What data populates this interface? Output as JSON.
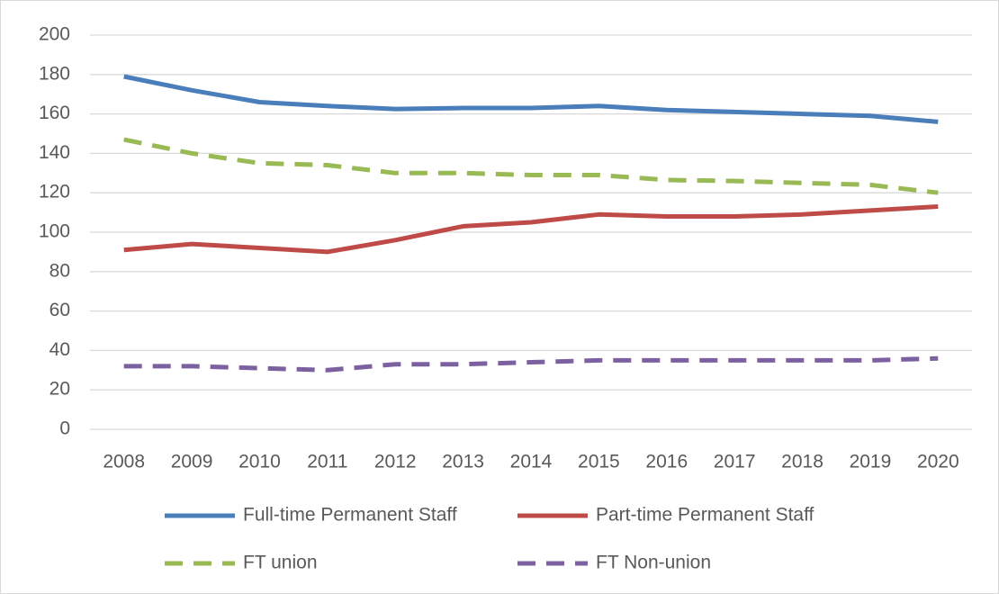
{
  "chart_data": {
    "type": "line",
    "categories": [
      "2008",
      "2009",
      "2010",
      "2011",
      "2012",
      "2013",
      "2014",
      "2015",
      "2016",
      "2017",
      "2018",
      "2019",
      "2020"
    ],
    "series": [
      {
        "name": "Full-time Permanent Staff",
        "color": "#4a7ebb",
        "dash": false,
        "values": [
          179,
          172,
          166,
          164,
          162.5,
          163,
          163,
          164,
          162,
          161,
          160,
          159,
          156
        ]
      },
      {
        "name": "Part-time Permanent Staff",
        "color": "#be4b48",
        "dash": false,
        "values": [
          91,
          94,
          92,
          90,
          96,
          103,
          105,
          109,
          108,
          108,
          109,
          111,
          113
        ]
      },
      {
        "name": "FT union",
        "color": "#98b954",
        "dash": true,
        "values": [
          147,
          140,
          135,
          134,
          130,
          130,
          129,
          129,
          126.5,
          126,
          125,
          124,
          120
        ]
      },
      {
        "name": "FT Non-union",
        "color": "#7d60a0",
        "dash": true,
        "values": [
          32,
          32,
          31,
          30,
          33,
          33,
          34,
          35,
          35,
          35,
          35,
          35,
          36
        ]
      }
    ],
    "ylim": [
      0,
      200
    ],
    "yticks": [
      0,
      20,
      40,
      60,
      80,
      100,
      120,
      140,
      160,
      180,
      200
    ],
    "grid": true,
    "legend": "bottom"
  }
}
